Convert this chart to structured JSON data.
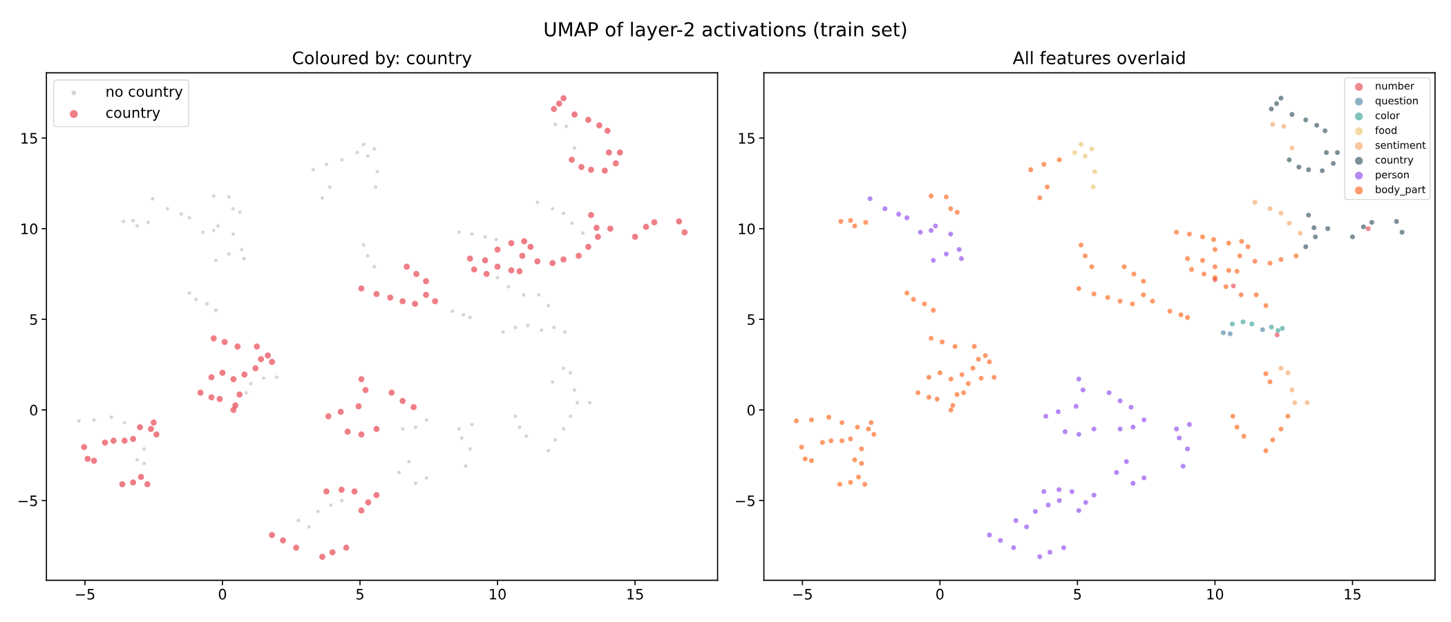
{
  "chart_data": [
    {
      "type": "other",
      "title": "UMAP of layer-2 activations (train set)"
    },
    {
      "type": "scatter",
      "title": "Coloured by: country",
      "marker": "circle",
      "grid": false,
      "legend": "top left",
      "xlim": [
        -6.4,
        18.0
      ],
      "ylim": [
        -9.4,
        18.6
      ],
      "xticks": [
        {
          "value": -5,
          "label": "−5"
        },
        0,
        5,
        10,
        15
      ],
      "yticks": [
        {
          "value": -5,
          "label": "−5"
        },
        0,
        5,
        10,
        15
      ],
      "series": [
        {
          "name": "no country",
          "color": "#cccccc",
          "x": [
            3.3,
            3.78,
            4.34,
            5.13,
            5.52,
            4.9,
            5.28,
            5.63,
            5.57,
            3.63,
            3.9,
            -2.54,
            -2.0,
            -1.5,
            -1.2,
            -3.6,
            -3.25,
            -3.1,
            -2.7,
            -0.32,
            0.23,
            0.39,
            0.63,
            -0.71,
            -0.32,
            -0.16,
            0.39,
            -0.24,
            0.23,
            0.7,
            0.78,
            -1.2,
            -0.96,
            -0.56,
            -0.24,
            5.13,
            5.28,
            5.52,
            8.36,
            8.76,
            9.0,
            8.6,
            9.07,
            9.55,
            9.95,
            11.45,
            12.0,
            12.4,
            12.7,
            13.1,
            10.0,
            10.4,
            10.95,
            11.5,
            11.85,
            10.2,
            10.65,
            11.1,
            11.6,
            12.05,
            12.45,
            12.0,
            12.4,
            12.65,
            12.8,
            12.9,
            13.35,
            11.85,
            12.1,
            12.4,
            12.65,
            10.65,
            10.8,
            11.05,
            8.6,
            9.07,
            8.7,
            9.0,
            8.84,
            6.55,
            7.02,
            7.42,
            6.42,
            6.78,
            7.02,
            7.42,
            3.47,
            3.94,
            4.34,
            2.76,
            3.15,
            -5.22,
            -4.67,
            -4.04,
            -3.56,
            -2.85,
            -2.85,
            -3.1,
            1.03,
            1.5,
            1.97,
            0.86,
            12.1,
            12.5,
            12.8
          ],
          "values": [
            13.25,
            13.55,
            13.8,
            14.65,
            14.4,
            14.2,
            14.0,
            13.15,
            12.3,
            11.7,
            12.3,
            11.65,
            11.1,
            10.8,
            10.6,
            10.4,
            10.45,
            10.15,
            10.35,
            11.8,
            11.75,
            11.1,
            10.9,
            9.8,
            9.9,
            10.15,
            9.7,
            8.25,
            8.6,
            8.85,
            8.35,
            6.45,
            6.1,
            5.85,
            5.5,
            9.1,
            8.5,
            7.9,
            5.45,
            5.25,
            5.1,
            9.8,
            9.7,
            9.55,
            9.4,
            11.45,
            11.1,
            10.85,
            10.3,
            9.75,
            7.3,
            6.8,
            6.35,
            6.35,
            5.75,
            4.3,
            4.55,
            4.65,
            4.4,
            4.55,
            4.3,
            1.55,
            2.3,
            2.05,
            1.1,
            0.4,
            0.4,
            -2.25,
            -1.65,
            -1.05,
            -0.35,
            -0.35,
            -0.95,
            -1.45,
            -1.05,
            -0.8,
            -1.55,
            -2.15,
            -3.1,
            -1.05,
            -0.95,
            -0.55,
            -3.45,
            -2.85,
            -4.05,
            -3.75,
            -5.6,
            -5.25,
            -5.0,
            -6.1,
            -6.45,
            -0.6,
            -0.55,
            -0.4,
            -0.7,
            -2.15,
            -2.95,
            -2.75,
            1.45,
            1.75,
            1.8,
            0.95,
            15.75,
            15.65,
            14.45
          ]
        },
        {
          "name": "country",
          "color": "#e63946",
          "x": [
            12.24,
            12.05,
            12.4,
            12.8,
            13.3,
            13.7,
            14.0,
            14.05,
            14.3,
            14.45,
            12.7,
            13.05,
            13.4,
            13.9,
            13.4,
            13.6,
            13.3,
            13.65,
            14.1,
            15.0,
            15.4,
            15.7,
            16.6,
            16.8,
            10.0,
            10.5,
            10.97,
            11.2,
            10.9,
            11.45,
            12.0,
            12.4,
            12.95,
            9.0,
            9.55,
            10.0,
            10.5,
            10.8,
            9.15,
            9.6,
            6.7,
            7.05,
            7.4,
            7.4,
            7.73,
            5.05,
            5.6,
            6.1,
            6.55,
            7.0,
            -0.32,
            0.08,
            0.55,
            1.25,
            1.65,
            1.8,
            1.4,
            1.2,
            -0.4,
            0.0,
            0.4,
            0.8,
            -0.8,
            -0.4,
            -0.1,
            0.47,
            0.62,
            0.4,
            5.05,
            5.2,
            6.15,
            6.55,
            6.95,
            3.85,
            4.3,
            4.95,
            4.55,
            5.05,
            5.6,
            -5.03,
            -4.9,
            -4.67,
            -4.27,
            -3.96,
            -3.56,
            -3.25,
            -3.0,
            -2.6,
            -2.5,
            -2.4,
            -3.64,
            -3.25,
            -2.96,
            -2.73,
            3.78,
            4.33,
            4.8,
            5.05,
            5.3,
            5.6,
            1.8,
            2.2,
            2.68,
            3.63,
            4.0,
            4.5
          ],
          "values": [
            16.9,
            16.6,
            17.2,
            16.3,
            16.0,
            15.7,
            15.4,
            14.2,
            13.6,
            14.2,
            13.8,
            13.4,
            13.25,
            13.2,
            10.75,
            10.05,
            9.0,
            9.55,
            10.0,
            9.55,
            10.1,
            10.35,
            10.4,
            9.8,
            8.85,
            9.2,
            9.3,
            9.0,
            8.5,
            8.2,
            8.1,
            8.3,
            8.5,
            8.35,
            8.25,
            7.9,
            7.7,
            7.65,
            7.75,
            7.5,
            7.9,
            7.5,
            7.1,
            6.35,
            6.0,
            6.7,
            6.4,
            6.2,
            6.0,
            5.85,
            3.95,
            3.75,
            3.5,
            3.5,
            3.0,
            2.65,
            2.8,
            2.3,
            1.8,
            2.05,
            1.7,
            1.95,
            0.95,
            0.7,
            0.6,
            0.25,
            0.85,
            0.0,
            1.7,
            1.1,
            0.95,
            0.5,
            0.15,
            -0.35,
            -0.1,
            0.2,
            -1.2,
            -1.35,
            -1.05,
            -2.05,
            -2.7,
            -2.8,
            -1.8,
            -1.7,
            -1.7,
            -1.6,
            -0.95,
            -1.05,
            -0.7,
            -1.35,
            -4.1,
            -4.0,
            -3.7,
            -4.1,
            -4.5,
            -4.4,
            -4.5,
            -5.55,
            -5.1,
            -4.7,
            -6.9,
            -7.2,
            -7.6,
            -8.1,
            -7.85,
            -7.6
          ]
        }
      ]
    },
    {
      "type": "scatter",
      "title": "All features overlaid",
      "marker": "circle",
      "grid": false,
      "legend": "top right",
      "xlim": [
        -6.4,
        18.0
      ],
      "ylim": [
        -9.4,
        18.6
      ],
      "xticks": [
        {
          "value": -5,
          "label": "−5"
        },
        0,
        5,
        10,
        15
      ],
      "yticks": [
        {
          "value": -5,
          "label": "−5"
        },
        0,
        5,
        10,
        15
      ],
      "series": [
        {
          "name": "number",
          "color": "#e63946",
          "x": [
            10.0,
            10.67,
            12.26,
            15.57
          ],
          "values": [
            7.18,
            6.84,
            4.14,
            10.0
          ]
        },
        {
          "name": "question",
          "color": "#457b9d",
          "x": [
            10.3,
            10.55,
            11.73
          ],
          "values": [
            4.26,
            4.2,
            4.43
          ]
        },
        {
          "name": "color",
          "color": "#2a9d8f",
          "x": [
            10.63,
            11.02,
            11.34,
            12.05,
            12.29,
            12.45
          ],
          "values": [
            4.74,
            4.86,
            4.74,
            4.57,
            4.38,
            4.5
          ]
        },
        {
          "name": "food",
          "color": "#e9c46a",
          "x": [
            5.13,
            5.52,
            4.9,
            5.28,
            5.63,
            5.57
          ],
          "values": [
            14.65,
            14.4,
            14.2,
            14.0,
            13.15,
            12.3
          ]
        },
        {
          "name": "sentiment",
          "color": "#f4a261",
          "x": [
            12.1,
            12.5,
            12.8,
            11.45,
            12.0,
            12.4,
            12.7,
            13.1,
            12.4,
            12.65,
            12.8,
            12.9,
            13.35
          ],
          "values": [
            15.75,
            15.65,
            14.45,
            11.45,
            11.1,
            10.85,
            10.3,
            9.75,
            2.3,
            2.05,
            1.1,
            0.4,
            0.4
          ]
        },
        {
          "name": "country",
          "color": "#264653",
          "x": [
            12.24,
            12.05,
            12.4,
            12.8,
            13.3,
            13.7,
            14.0,
            14.05,
            14.3,
            14.45,
            12.7,
            13.05,
            13.4,
            13.9,
            13.4,
            13.6,
            13.3,
            13.65,
            14.1,
            15.0,
            15.4,
            15.7,
            16.6,
            16.8
          ],
          "values": [
            16.9,
            16.6,
            17.2,
            16.3,
            16.0,
            15.7,
            15.4,
            14.2,
            13.6,
            14.2,
            13.8,
            13.4,
            13.25,
            13.2,
            10.75,
            10.05,
            9.0,
            9.55,
            10.0,
            9.55,
            10.1,
            10.35,
            10.4,
            9.8
          ]
        },
        {
          "name": "person",
          "color": "#8338ec",
          "x": [
            -2.54,
            -2.0,
            -1.5,
            -1.2,
            -0.71,
            -0.32,
            -0.16,
            0.39,
            -0.24,
            0.23,
            0.7,
            0.78,
            5.05,
            5.2,
            6.15,
            6.55,
            6.95,
            3.85,
            4.3,
            4.95,
            4.55,
            5.05,
            5.6,
            6.55,
            7.02,
            7.42,
            8.6,
            9.07,
            8.7,
            9.0,
            8.84,
            6.42,
            6.78,
            7.02,
            7.42,
            3.47,
            3.94,
            4.34,
            2.76,
            3.15,
            3.78,
            4.33,
            4.8,
            5.05,
            5.3,
            5.6,
            1.8,
            2.2,
            2.68,
            3.63,
            4.0,
            4.5
          ],
          "values": [
            11.65,
            11.1,
            10.8,
            10.6,
            9.8,
            9.9,
            10.15,
            9.7,
            8.25,
            8.6,
            8.85,
            8.35,
            1.7,
            1.1,
            0.95,
            0.5,
            0.15,
            -0.35,
            -0.1,
            0.2,
            -1.2,
            -1.35,
            -1.05,
            -1.05,
            -0.95,
            -0.55,
            -1.05,
            -0.8,
            -1.55,
            -2.15,
            -3.1,
            -3.45,
            -2.85,
            -4.05,
            -3.75,
            -5.6,
            -5.25,
            -5.0,
            -6.1,
            -6.45,
            -4.5,
            -4.4,
            -4.5,
            -5.55,
            -5.1,
            -4.7,
            -6.9,
            -7.2,
            -7.6,
            -8.1,
            -7.85,
            -7.6
          ]
        },
        {
          "name": "body_part",
          "color": "#fb5607",
          "x": [
            3.3,
            3.78,
            4.34,
            3.63,
            3.9,
            -3.6,
            -3.25,
            -3.1,
            -2.7,
            -0.32,
            0.23,
            0.39,
            0.63,
            -1.2,
            -0.96,
            -0.56,
            -0.24,
            5.13,
            5.28,
            5.52,
            8.36,
            8.76,
            9.0,
            8.6,
            9.07,
            9.55,
            9.95,
            10.0,
            10.4,
            10.95,
            11.5,
            11.85,
            10.0,
            10.5,
            10.97,
            11.2,
            10.9,
            11.45,
            12.0,
            12.4,
            12.95,
            9.0,
            9.55,
            10.0,
            10.5,
            10.8,
            9.15,
            9.6,
            6.7,
            7.05,
            7.4,
            7.4,
            7.73,
            5.05,
            5.6,
            6.1,
            6.55,
            7.0,
            -0.32,
            0.08,
            0.55,
            1.25,
            1.65,
            1.8,
            1.4,
            1.2,
            -0.4,
            0.0,
            0.4,
            0.8,
            -0.8,
            -0.4,
            -0.1,
            0.47,
            0.62,
            0.4,
            -5.03,
            -4.9,
            -4.67,
            -4.27,
            -3.96,
            -3.56,
            -3.25,
            -3.0,
            -2.6,
            -2.5,
            -2.4,
            -3.64,
            -3.25,
            -2.96,
            -2.73,
            -5.22,
            -4.67,
            -4.04,
            -3.56,
            -2.85,
            -2.85,
            -3.1,
            1.03,
            1.5,
            1.97,
            0.86,
            11.85,
            12.1,
            12.4,
            12.65,
            10.65,
            10.8,
            11.05,
            12.0,
            11.85
          ],
          "values": [
            13.25,
            13.55,
            13.8,
            11.7,
            12.3,
            10.4,
            10.45,
            10.15,
            10.35,
            11.8,
            11.75,
            11.1,
            10.9,
            6.45,
            6.1,
            5.85,
            5.5,
            9.1,
            8.5,
            7.9,
            5.45,
            5.25,
            5.1,
            9.8,
            9.7,
            9.55,
            9.4,
            7.3,
            6.8,
            6.35,
            6.35,
            5.75,
            8.85,
            9.2,
            9.3,
            9.0,
            8.5,
            8.2,
            8.1,
            8.3,
            8.5,
            8.35,
            8.25,
            7.9,
            7.7,
            7.65,
            7.75,
            7.5,
            7.9,
            7.5,
            7.1,
            6.35,
            6.0,
            6.7,
            6.4,
            6.2,
            6.0,
            5.85,
            3.95,
            3.75,
            3.5,
            3.5,
            3.0,
            2.65,
            2.8,
            2.3,
            1.8,
            2.05,
            1.7,
            1.95,
            0.95,
            0.7,
            0.6,
            0.25,
            0.85,
            0.0,
            -2.05,
            -2.7,
            -2.8,
            -1.8,
            -1.7,
            -1.7,
            -1.6,
            -0.95,
            -1.05,
            -0.7,
            -1.35,
            -4.1,
            -4.0,
            -3.7,
            -4.1,
            -0.6,
            -0.55,
            -0.4,
            -0.7,
            -2.15,
            -2.95,
            -2.75,
            1.45,
            1.75,
            1.8,
            0.95,
            -2.25,
            -1.65,
            -1.05,
            -0.35,
            -0.35,
            -0.95,
            -1.45,
            1.55,
            2.0
          ]
        }
      ]
    }
  ]
}
